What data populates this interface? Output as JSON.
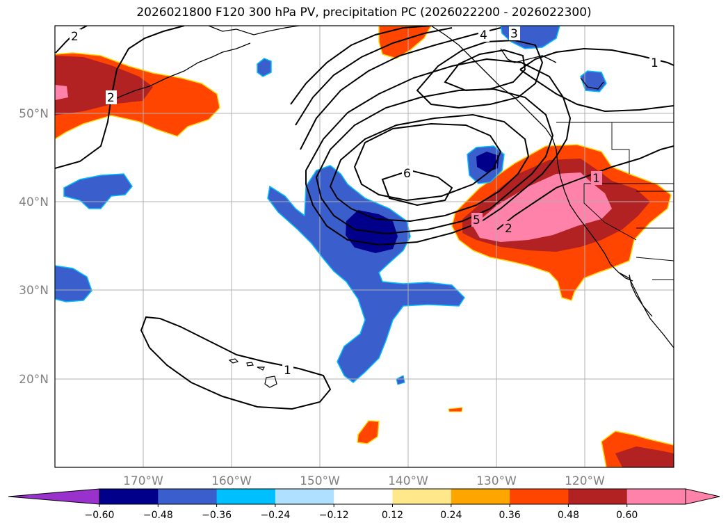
{
  "title": "2026021800 F120 300 hPa PV, precipitation PC (2026022200 - 2026022300)",
  "map": {
    "lat_labels": [
      "50°N",
      "40°N",
      "30°N",
      "20°N"
    ],
    "lon_labels": [
      "170°W",
      "160°W",
      "150°W",
      "140°W",
      "130°W",
      "120°W"
    ],
    "pv_contour_labels": [
      "2",
      "2",
      "4",
      "3",
      "1",
      "6",
      "5",
      "2",
      "1",
      "1"
    ]
  },
  "colorbar": {
    "colors": [
      "#9932cc",
      "#00008b",
      "#3a5fcd",
      "#00bfff",
      "#b0e0ff",
      "#ffffff",
      "#ffe88a",
      "#ffa500",
      "#ff4500",
      "#b22222",
      "#ff82ab",
      "#ff82ab"
    ],
    "tick_labels": [
      "−0.60",
      "−0.48",
      "−0.36",
      "−0.24",
      "−0.12",
      "0.12",
      "0.24",
      "0.36",
      "0.48",
      "0.60"
    ]
  }
}
